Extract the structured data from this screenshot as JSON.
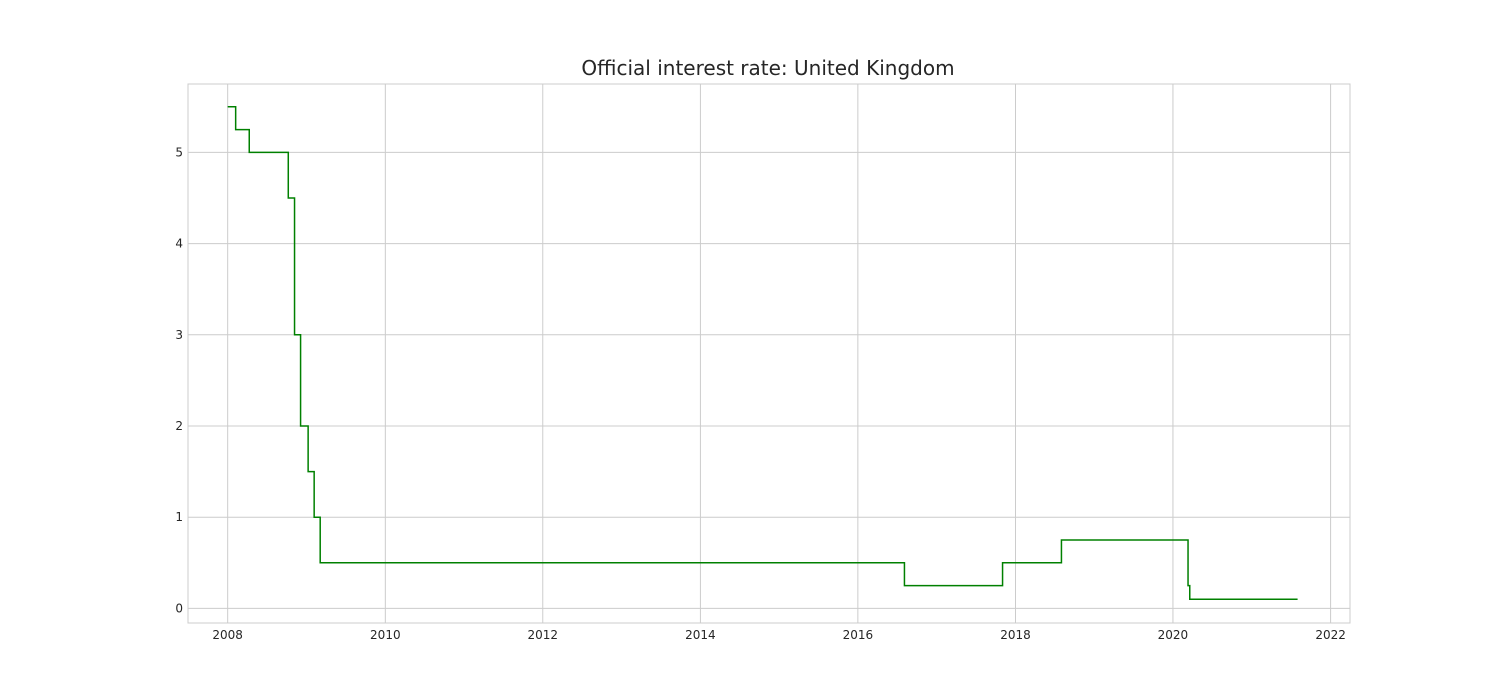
{
  "chart_data": {
    "type": "line",
    "title": "Official interest rate: United Kingdom",
    "xlabel": "",
    "ylabel": "",
    "x_axis": "date",
    "xlim": [
      "2007-07-01",
      "2022-04-01"
    ],
    "ylim": [
      -0.16,
      5.75
    ],
    "x_ticks": [
      "2008",
      "2010",
      "2012",
      "2014",
      "2016",
      "2018",
      "2020",
      "2022"
    ],
    "y_ticks": [
      0,
      1,
      2,
      3,
      4,
      5
    ],
    "grid": true,
    "legend": "none",
    "step": "post",
    "line_color": "#008000",
    "series": [
      {
        "x": [
          "2008-01-01",
          "2008-02-07",
          "2008-04-10",
          "2008-10-08",
          "2008-11-06",
          "2008-12-04",
          "2009-01-08",
          "2009-02-05",
          "2009-03-05",
          "2016-08-04",
          "2017-11-02",
          "2018-08-02",
          "2020-03-11",
          "2020-03-19",
          "2021-08-01"
        ],
        "values": [
          5.5,
          5.25,
          5.0,
          4.5,
          3.0,
          2.0,
          1.5,
          1.0,
          0.5,
          0.25,
          0.5,
          0.75,
          0.25,
          0.1,
          0.1
        ]
      }
    ]
  }
}
